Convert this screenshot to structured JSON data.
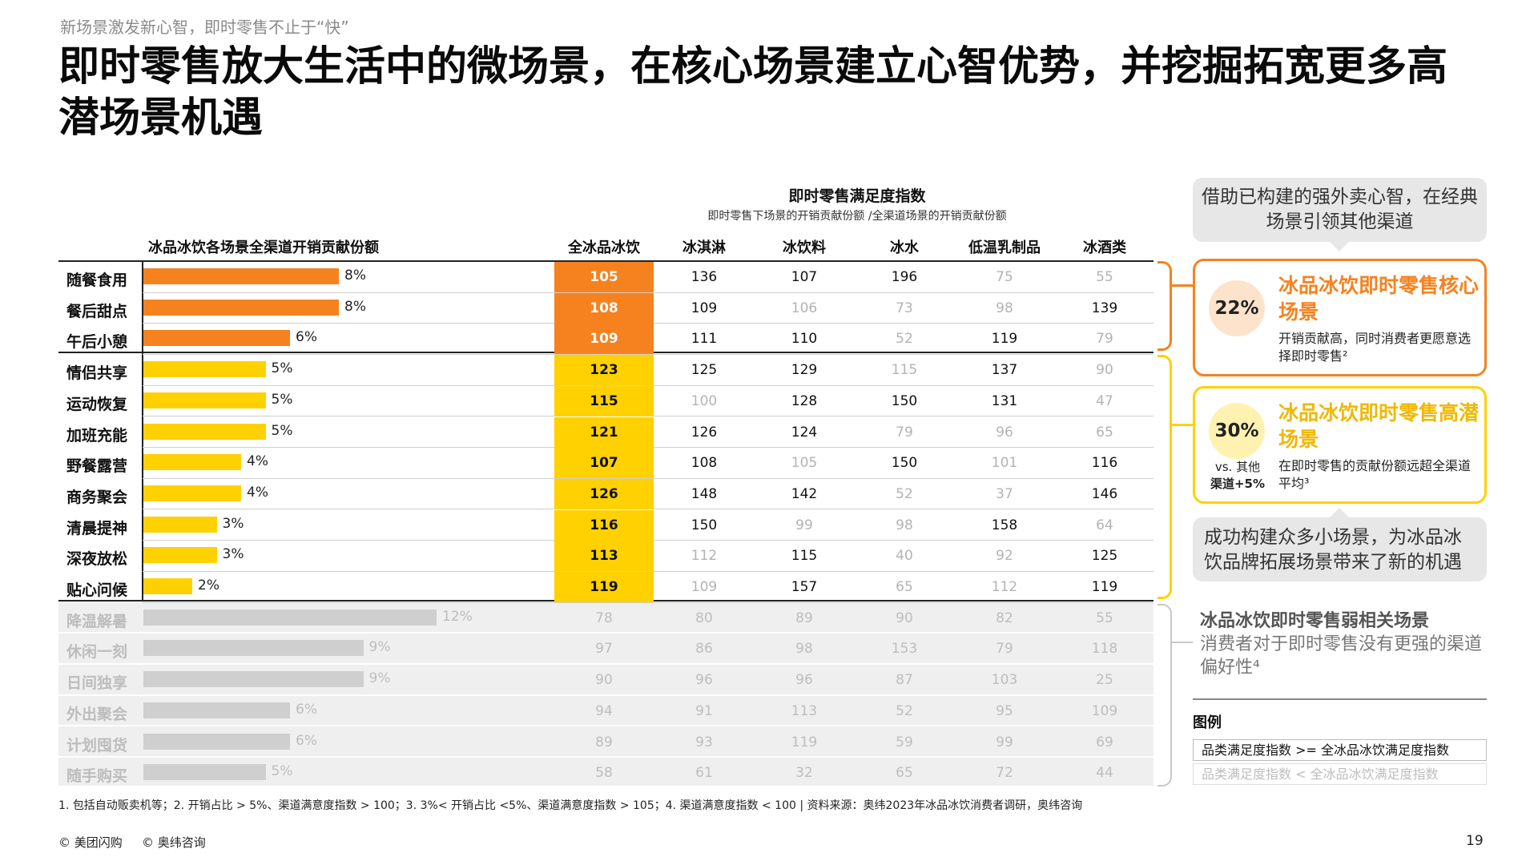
{
  "header": {
    "subtitle": "新场景激发新心智，即时零售不止于“快”",
    "title": "即时零售放大生活中的微场景，在核心场景建立心智优势，并挖掘拓宽更多高潜场景机遇"
  },
  "table": {
    "index_title": "即时零售满足度指数",
    "index_subtitle": "即时零售下场景的开销贡献份额 /全渠道场景的开销贡献份额",
    "left_header": "冰品冰饮各场景全渠道开销贡献份额",
    "columns": [
      "全冰品冰饮",
      "冰淇淋",
      "冰饮料",
      "冰水",
      "低温乳制品",
      "冰酒类"
    ],
    "rows": [
      {
        "label": "随餐食用",
        "share": 8,
        "share_label": "8%",
        "group": "core",
        "values": [
          "105",
          "136",
          "107",
          "196",
          "75",
          "55"
        ],
        "dim": [
          false,
          false,
          false,
          false,
          true,
          true
        ]
      },
      {
        "label": "餐后甜点",
        "share": 8,
        "share_label": "8%",
        "group": "core",
        "values": [
          "108",
          "109",
          "106",
          "73",
          "98",
          "139"
        ],
        "dim": [
          false,
          false,
          true,
          true,
          true,
          false
        ]
      },
      {
        "label": "午后小憩",
        "share": 6,
        "share_label": "6%",
        "group": "core",
        "values": [
          "109",
          "111",
          "110",
          "52",
          "119",
          "79"
        ],
        "dim": [
          false,
          false,
          false,
          true,
          false,
          true
        ]
      },
      {
        "label": "情侣共享",
        "share": 5,
        "share_label": "5%",
        "group": "potential",
        "values": [
          "123",
          "125",
          "129",
          "115",
          "137",
          "90"
        ],
        "dim": [
          false,
          false,
          false,
          true,
          false,
          true
        ]
      },
      {
        "label": "运动恢复",
        "share": 5,
        "share_label": "5%",
        "group": "potential",
        "values": [
          "115",
          "100",
          "128",
          "150",
          "131",
          "47"
        ],
        "dim": [
          false,
          true,
          false,
          false,
          false,
          true
        ]
      },
      {
        "label": "加班充能",
        "share": 5,
        "share_label": "5%",
        "group": "potential",
        "values": [
          "121",
          "126",
          "124",
          "79",
          "96",
          "65"
        ],
        "dim": [
          false,
          false,
          false,
          true,
          true,
          true
        ]
      },
      {
        "label": "野餐露营",
        "share": 4,
        "share_label": "4%",
        "group": "potential",
        "values": [
          "107",
          "108",
          "105",
          "150",
          "101",
          "116"
        ],
        "dim": [
          false,
          false,
          true,
          false,
          true,
          false
        ]
      },
      {
        "label": "商务聚会",
        "share": 4,
        "share_label": "4%",
        "group": "potential",
        "values": [
          "126",
          "148",
          "142",
          "52",
          "37",
          "146"
        ],
        "dim": [
          false,
          false,
          false,
          true,
          true,
          false
        ]
      },
      {
        "label": "清晨提神",
        "share": 3,
        "share_label": "3%",
        "group": "potential",
        "values": [
          "116",
          "150",
          "99",
          "98",
          "158",
          "64"
        ],
        "dim": [
          false,
          false,
          true,
          true,
          false,
          true
        ]
      },
      {
        "label": "深夜放松",
        "share": 3,
        "share_label": "3%",
        "group": "potential",
        "values": [
          "113",
          "112",
          "115",
          "40",
          "92",
          "125"
        ],
        "dim": [
          false,
          true,
          false,
          true,
          true,
          false
        ]
      },
      {
        "label": "贴心问候",
        "share": 2,
        "share_label": "2%",
        "group": "potential",
        "values": [
          "119",
          "109",
          "157",
          "65",
          "112",
          "119"
        ],
        "dim": [
          false,
          true,
          false,
          true,
          true,
          false
        ]
      },
      {
        "label": "降温解暑",
        "share": 12,
        "share_label": "12%",
        "group": "weak",
        "values": [
          "78",
          "80",
          "89",
          "90",
          "82",
          "55"
        ],
        "dim": [
          true,
          true,
          true,
          true,
          true,
          true
        ]
      },
      {
        "label": "休闲一刻",
        "share": 9,
        "share_label": "9%",
        "group": "weak",
        "values": [
          "97",
          "86",
          "98",
          "153",
          "79",
          "118"
        ],
        "dim": [
          true,
          true,
          true,
          true,
          true,
          true
        ]
      },
      {
        "label": "日间独享",
        "share": 9,
        "share_label": "9%",
        "group": "weak",
        "values": [
          "90",
          "96",
          "96",
          "87",
          "103",
          "25"
        ],
        "dim": [
          true,
          true,
          true,
          true,
          true,
          true
        ]
      },
      {
        "label": "外出聚会",
        "share": 6,
        "share_label": "6%",
        "group": "weak",
        "values": [
          "94",
          "91",
          "113",
          "52",
          "95",
          "109"
        ],
        "dim": [
          true,
          true,
          true,
          true,
          true,
          true
        ]
      },
      {
        "label": "计划囤货",
        "share": 6,
        "share_label": "6%",
        "group": "weak",
        "values": [
          "89",
          "93",
          "119",
          "59",
          "99",
          "69"
        ],
        "dim": [
          true,
          true,
          true,
          true,
          true,
          true
        ]
      },
      {
        "label": "随手购买",
        "share": 5,
        "share_label": "5%",
        "group": "weak",
        "values": [
          "58",
          "61",
          "32",
          "65",
          "72",
          "44"
        ],
        "dim": [
          true,
          true,
          true,
          true,
          true,
          true
        ]
      }
    ]
  },
  "colors": {
    "core": "#f5821f",
    "potential": "#ffd100",
    "weak_bar": "#cfcfcf",
    "bracket_weak": "#c8c8c8"
  },
  "right_panel": {
    "top_note": "借助已构建的强外卖心智，在经典场景引领其他渠道",
    "core_card": {
      "percent": "22%",
      "title": "冰品冰饮即时零售核心场景",
      "desc": "开销贡献高，同时消费者更愿意选择即时零售²"
    },
    "potential_card": {
      "percent": "30%",
      "title": "冰品冰饮即时零售高潜场景",
      "desc": "在即时零售的贡献份额远超全渠道平均³",
      "vs_line1": "vs. 其他",
      "vs_line2": "渠道+5%"
    },
    "middle_note": "成功构建众多小场景，为冰品冰饮品牌拓展场景带来了新的机遇",
    "weak": {
      "title": "冰品冰饮即时零售弱相关场景",
      "desc": "消费者对于即时零售没有更强的渠道偏好性⁴"
    },
    "legend": {
      "title": "图例",
      "item1": "品类满足度指数 >= 全冰品冰饮满足度指数",
      "item2": "品类满足度指数 < 全冰品冰饮满足度指数"
    }
  },
  "footer": {
    "footnote": "1. 包括自动贩卖机等；2. 开销占比 > 5%、渠道满意度指数 > 100；3. 3%< 开销占比 <5%、渠道满意度指数 > 105；4. 渠道满意度指数 < 100 | 资料来源：奥纬2023年冰品冰饮消费者调研，奥纬咨询",
    "copyright1": "© 美团闪购",
    "copyright2": "© 奥纬咨询",
    "page": "19"
  }
}
